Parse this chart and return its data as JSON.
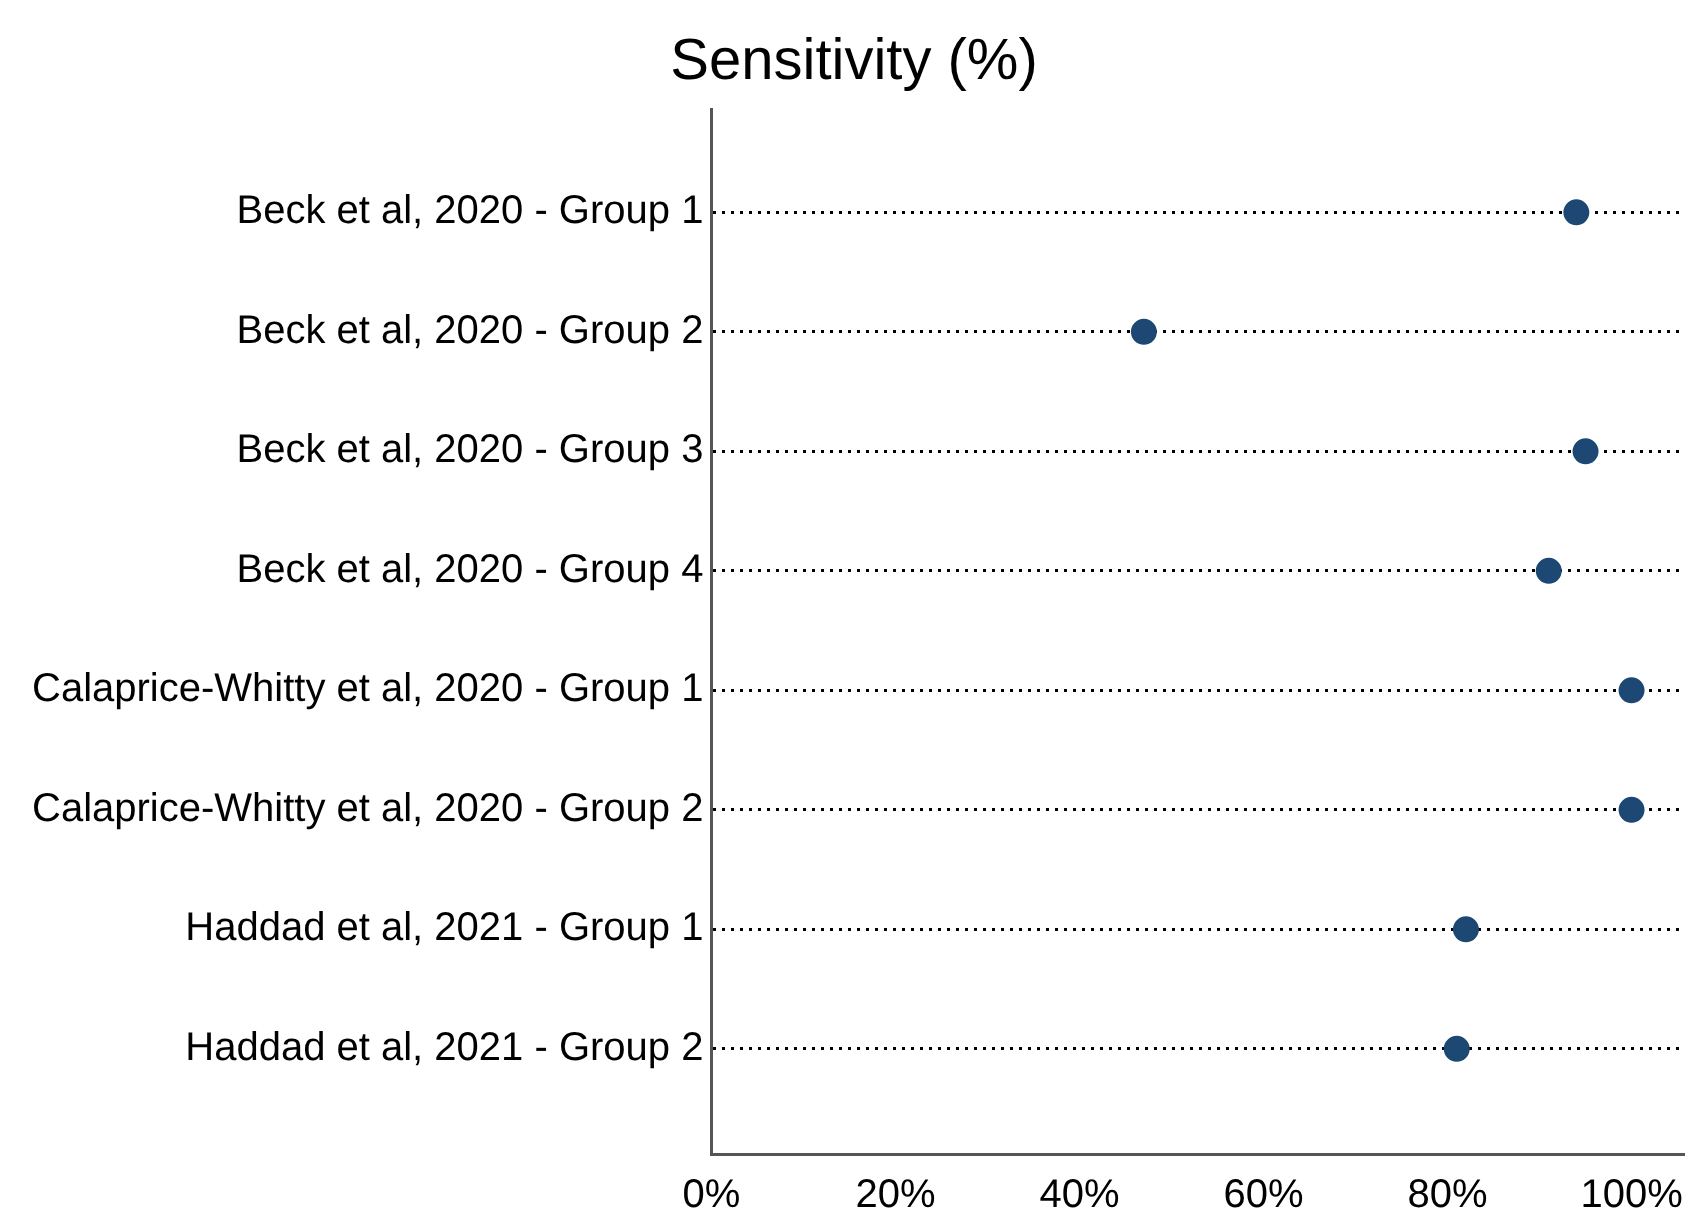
{
  "chart_data": {
    "type": "scatter",
    "orientation": "horizontal",
    "title": "Sensitivity (%)",
    "categories": [
      "Beck et al, 2020 - Group 1",
      "Beck et al, 2020 - Group 2",
      "Beck et al, 2020 - Group 3",
      "Beck et al, 2020 - Group 4",
      "Calaprice-Whitty et al, 2020 - Group 1",
      "Calaprice-Whitty et al, 2020 - Group 2",
      "Haddad et al, 2021 - Group 1",
      "Haddad et al, 2021 - Group 2"
    ],
    "values": [
      94,
      47,
      95,
      91,
      100,
      100,
      82,
      81
    ],
    "color": "#1c4873",
    "xlim": [
      0,
      105.7
    ],
    "xticks": [
      {
        "value": 0,
        "label": "0%"
      },
      {
        "value": 20,
        "label": "20%"
      },
      {
        "value": 40,
        "label": "40%"
      },
      {
        "value": 60,
        "label": "60%"
      },
      {
        "value": 80,
        "label": "80%"
      },
      {
        "value": 100,
        "label": "100%"
      }
    ],
    "grid": "y",
    "marker": "circle",
    "legend": false
  }
}
